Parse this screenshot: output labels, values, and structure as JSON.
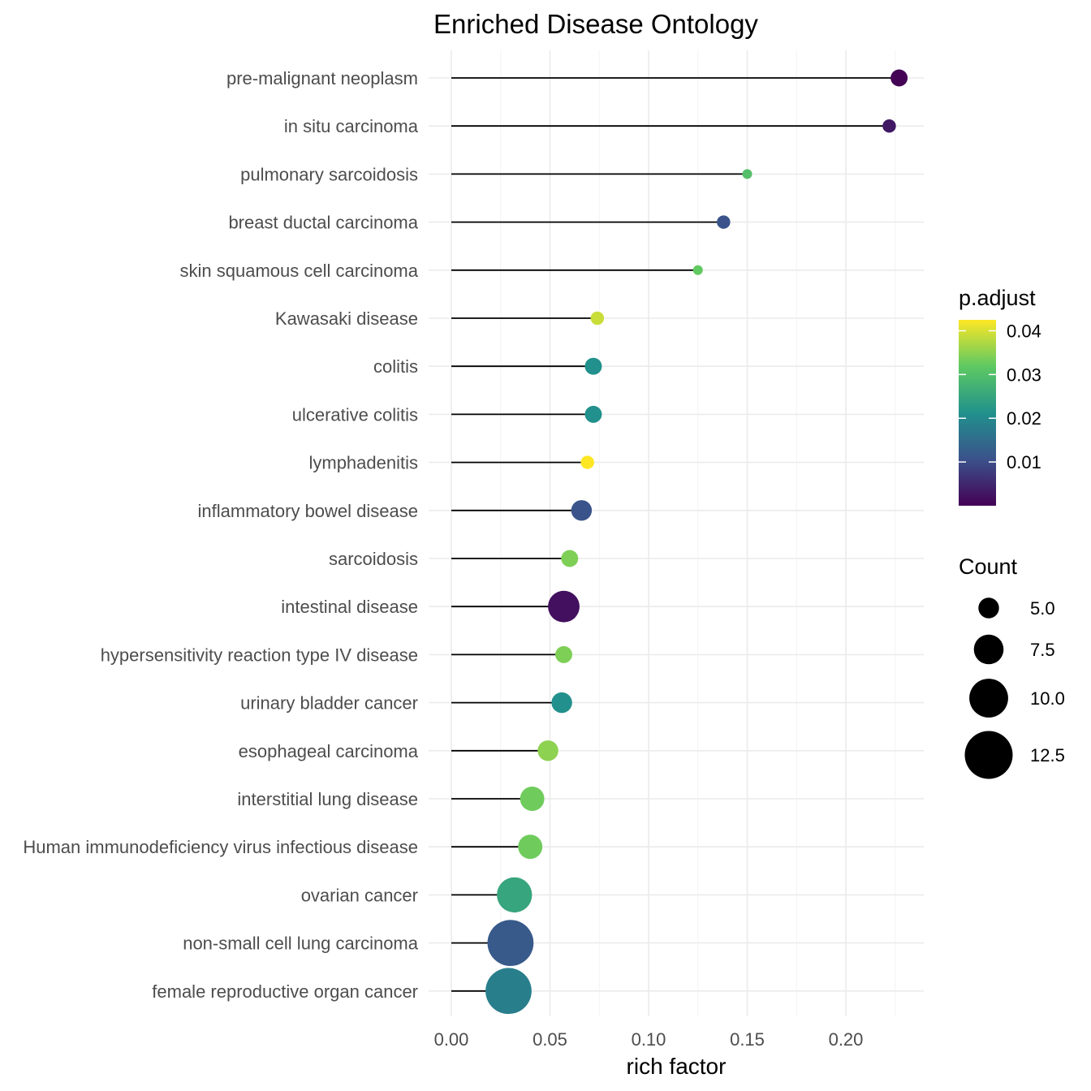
{
  "chart_data": {
    "type": "lollipop",
    "title": "Enriched Disease Ontology",
    "xlabel": "rich factor",
    "ylabel": "",
    "xlim": [
      -0.01,
      0.239
    ],
    "x_ticks": [
      0.0,
      0.05,
      0.1,
      0.15,
      0.2
    ],
    "x_tick_labels": [
      "0.00",
      "0.05",
      "0.10",
      "0.15",
      "0.20"
    ],
    "grid": true,
    "categories": [
      "pre-malignant neoplasm",
      "in situ carcinoma",
      "pulmonary sarcoidosis",
      "breast ductal carcinoma",
      "skin squamous cell carcinoma",
      "Kawasaki disease",
      "colitis",
      "ulcerative colitis",
      "lymphadenitis",
      "inflammatory bowel disease",
      "sarcoidosis",
      "intestinal disease",
      "hypersensitivity reaction type IV disease",
      "urinary bladder cancer",
      "esophageal carcinoma",
      "interstitial lung disease",
      "Human immunodeficiency virus infectious disease",
      "ovarian cancer",
      "non-small cell lung carcinoma",
      "female reproductive organ cancer"
    ],
    "rich_factor": [
      0.227,
      0.222,
      0.15,
      0.138,
      0.125,
      0.074,
      0.072,
      0.072,
      0.069,
      0.066,
      0.06,
      0.057,
      0.057,
      0.056,
      0.049,
      0.041,
      0.04,
      0.032,
      0.03,
      0.029
    ],
    "count": [
      4,
      3,
      2,
      3,
      2,
      3,
      4,
      4,
      3,
      5,
      4,
      8,
      4,
      5,
      5,
      6,
      6,
      9,
      12,
      12
    ],
    "p_adjust": [
      0.0002,
      0.003,
      0.03,
      0.011,
      0.032,
      0.039,
      0.021,
      0.021,
      0.043,
      0.011,
      0.034,
      0.002,
      0.034,
      0.021,
      0.035,
      0.033,
      0.033,
      0.025,
      0.012,
      0.018
    ],
    "color_legend": {
      "title": "p.adjust",
      "range": [
        0.0,
        0.0425
      ],
      "ticks": [
        0.04,
        0.03,
        0.02,
        0.01
      ],
      "tick_labels": [
        "0.04",
        "0.03",
        "0.02",
        "0.01"
      ],
      "palette": "viridis",
      "placement": "right"
    },
    "size_legend": {
      "title": "Count",
      "values": [
        5.0,
        7.5,
        10.0,
        12.5
      ],
      "labels": [
        "5.0",
        "7.5",
        "10.0",
        "12.5"
      ],
      "placement": "right"
    }
  }
}
